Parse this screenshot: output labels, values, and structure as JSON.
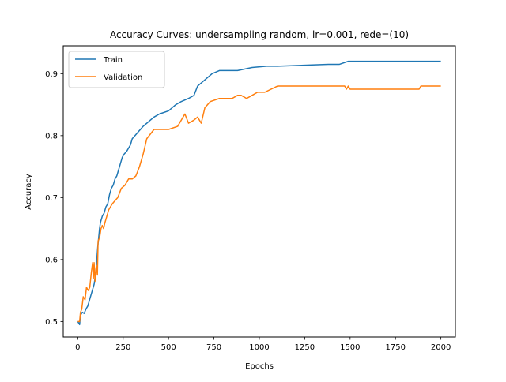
{
  "chart_data": {
    "type": "line",
    "title": "Accuracy Curves: undersampling random, lr=0.001, rede=(10)",
    "xlabel": "Epochs",
    "ylabel": "Accuracy",
    "xlim": [
      -80,
      2080
    ],
    "ylim": [
      0.475,
      0.945
    ],
    "xticks": [
      0,
      250,
      500,
      750,
      1000,
      1250,
      1500,
      1750,
      2000
    ],
    "xtick_labels": [
      "0",
      "250",
      "500",
      "750",
      "1000",
      "1250",
      "1500",
      "1750",
      "2000"
    ],
    "yticks": [
      0.5,
      0.6,
      0.7,
      0.8,
      0.9
    ],
    "ytick_labels": [
      "0.5",
      "0.6",
      "0.7",
      "0.8",
      "0.9"
    ],
    "grid": false,
    "legend_position": "top-left",
    "series": [
      {
        "name": "Train",
        "color": "#1f77b4",
        "points": [
          [
            0,
            0.5
          ],
          [
            10,
            0.495
          ],
          [
            15,
            0.51
          ],
          [
            25,
            0.515
          ],
          [
            35,
            0.513
          ],
          [
            45,
            0.52
          ],
          [
            55,
            0.525
          ],
          [
            65,
            0.535
          ],
          [
            75,
            0.545
          ],
          [
            80,
            0.55
          ],
          [
            90,
            0.56
          ],
          [
            100,
            0.58
          ],
          [
            105,
            0.6
          ],
          [
            110,
            0.62
          ],
          [
            115,
            0.635
          ],
          [
            120,
            0.65
          ],
          [
            125,
            0.66
          ],
          [
            135,
            0.67
          ],
          [
            145,
            0.675
          ],
          [
            155,
            0.685
          ],
          [
            165,
            0.69
          ],
          [
            175,
            0.705
          ],
          [
            185,
            0.715
          ],
          [
            195,
            0.72
          ],
          [
            205,
            0.73
          ],
          [
            215,
            0.735
          ],
          [
            225,
            0.745
          ],
          [
            235,
            0.755
          ],
          [
            245,
            0.765
          ],
          [
            255,
            0.77
          ],
          [
            270,
            0.775
          ],
          [
            290,
            0.785
          ],
          [
            300,
            0.795
          ],
          [
            315,
            0.8
          ],
          [
            330,
            0.805
          ],
          [
            345,
            0.81
          ],
          [
            360,
            0.815
          ],
          [
            380,
            0.82
          ],
          [
            400,
            0.825
          ],
          [
            420,
            0.83
          ],
          [
            450,
            0.835
          ],
          [
            500,
            0.84
          ],
          [
            540,
            0.85
          ],
          [
            570,
            0.855
          ],
          [
            610,
            0.86
          ],
          [
            640,
            0.865
          ],
          [
            660,
            0.88
          ],
          [
            700,
            0.89
          ],
          [
            740,
            0.9
          ],
          [
            780,
            0.905
          ],
          [
            880,
            0.905
          ],
          [
            960,
            0.91
          ],
          [
            1040,
            0.912
          ],
          [
            1100,
            0.912
          ],
          [
            1380,
            0.915
          ],
          [
            1440,
            0.915
          ],
          [
            1490,
            0.92
          ],
          [
            2000,
            0.92
          ]
        ]
      },
      {
        "name": "Validation",
        "color": "#ff7f0e",
        "points": [
          [
            0,
            0.5
          ],
          [
            10,
            0.5
          ],
          [
            15,
            0.515
          ],
          [
            22,
            0.52
          ],
          [
            30,
            0.54
          ],
          [
            40,
            0.535
          ],
          [
            48,
            0.555
          ],
          [
            58,
            0.55
          ],
          [
            66,
            0.555
          ],
          [
            75,
            0.58
          ],
          [
            82,
            0.595
          ],
          [
            86,
            0.57
          ],
          [
            90,
            0.595
          ],
          [
            95,
            0.565
          ],
          [
            102,
            0.59
          ],
          [
            108,
            0.575
          ],
          [
            112,
            0.63
          ],
          [
            120,
            0.635
          ],
          [
            128,
            0.65
          ],
          [
            135,
            0.655
          ],
          [
            142,
            0.65
          ],
          [
            150,
            0.66
          ],
          [
            160,
            0.67
          ],
          [
            170,
            0.68
          ],
          [
            180,
            0.685
          ],
          [
            190,
            0.69
          ],
          [
            205,
            0.695
          ],
          [
            220,
            0.7
          ],
          [
            240,
            0.715
          ],
          [
            260,
            0.72
          ],
          [
            280,
            0.73
          ],
          [
            300,
            0.73
          ],
          [
            320,
            0.735
          ],
          [
            340,
            0.75
          ],
          [
            360,
            0.77
          ],
          [
            380,
            0.795
          ],
          [
            420,
            0.81
          ],
          [
            460,
            0.81
          ],
          [
            500,
            0.81
          ],
          [
            550,
            0.815
          ],
          [
            570,
            0.825
          ],
          [
            590,
            0.835
          ],
          [
            610,
            0.82
          ],
          [
            640,
            0.825
          ],
          [
            660,
            0.83
          ],
          [
            680,
            0.82
          ],
          [
            700,
            0.845
          ],
          [
            730,
            0.855
          ],
          [
            780,
            0.86
          ],
          [
            850,
            0.86
          ],
          [
            880,
            0.865
          ],
          [
            900,
            0.865
          ],
          [
            930,
            0.86
          ],
          [
            960,
            0.865
          ],
          [
            990,
            0.87
          ],
          [
            1030,
            0.87
          ],
          [
            1100,
            0.88
          ],
          [
            1470,
            0.88
          ],
          [
            1480,
            0.875
          ],
          [
            1490,
            0.88
          ],
          [
            1500,
            0.875
          ],
          [
            1880,
            0.875
          ],
          [
            1890,
            0.88
          ],
          [
            2000,
            0.88
          ]
        ]
      }
    ]
  }
}
